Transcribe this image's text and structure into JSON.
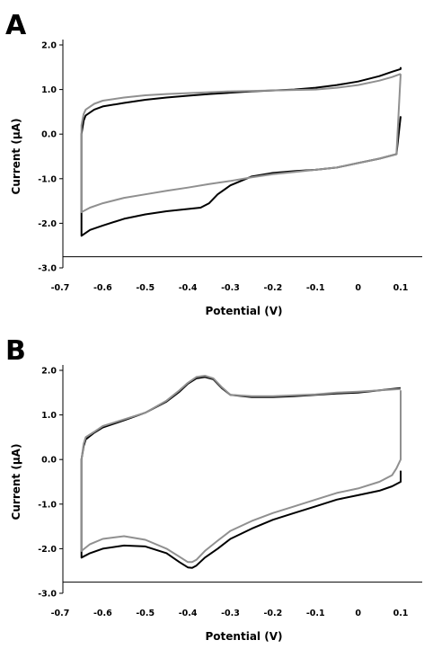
{
  "chart_data": [
    {
      "type": "line",
      "panel_label": "A",
      "xlabel": "Potential (V)",
      "ylabel": "Current (μA)",
      "xlim": [
        -0.7,
        0.12
      ],
      "ylim": [
        -3.0,
        2.1
      ],
      "xticks": [
        -0.7,
        -0.6,
        -0.5,
        -0.4,
        -0.3,
        -0.2,
        -0.1,
        0,
        0.1
      ],
      "xtick_labels": [
        "-0.7",
        "-0.6",
        "-0.5",
        "-0.4",
        "-0.3",
        "-0.2",
        "-0.1",
        "0",
        "0.1"
      ],
      "yticks": [
        2.0,
        1.0,
        0.0,
        -1.0,
        -2.0,
        -3.0
      ],
      "ytick_labels": [
        "2.0",
        "1.0",
        "0.0",
        "-1.0",
        "-2.0",
        "-3.0"
      ],
      "x_axis_at_y": -2.75,
      "grid": false,
      "series": [
        {
          "color": "#000000",
          "x": [
            0.1,
            0.09,
            0.05,
            0.0,
            -0.05,
            -0.1,
            -0.15,
            -0.2,
            -0.25,
            -0.3,
            -0.33,
            -0.35,
            -0.37,
            -0.4,
            -0.45,
            -0.5,
            -0.55,
            -0.6,
            -0.63,
            -0.65,
            -0.65,
            -0.65,
            -0.65,
            -0.645,
            -0.64,
            -0.62,
            -0.6,
            -0.55,
            -0.5,
            -0.45,
            -0.4,
            -0.35,
            -0.3,
            -0.25,
            -0.2,
            -0.15,
            -0.1,
            -0.05,
            0.0,
            0.05,
            0.08,
            0.1,
            0.1
          ],
          "y": [
            0.4,
            -0.45,
            -0.55,
            -0.65,
            -0.75,
            -0.8,
            -0.83,
            -0.87,
            -0.95,
            -1.15,
            -1.35,
            -1.55,
            -1.65,
            -1.68,
            -1.73,
            -1.8,
            -1.9,
            -2.05,
            -2.15,
            -2.28,
            -1.8,
            -1.0,
            0.0,
            0.3,
            0.42,
            0.55,
            0.62,
            0.7,
            0.77,
            0.82,
            0.86,
            0.9,
            0.93,
            0.96,
            0.98,
            1.0,
            1.04,
            1.1,
            1.18,
            1.3,
            1.4,
            1.46,
            1.5
          ]
        },
        {
          "color": "#909090",
          "x": [
            0.1,
            0.09,
            0.05,
            0.0,
            -0.05,
            -0.1,
            -0.15,
            -0.2,
            -0.25,
            -0.3,
            -0.35,
            -0.4,
            -0.45,
            -0.5,
            -0.55,
            -0.6,
            -0.63,
            -0.65,
            -0.65,
            -0.65,
            -0.645,
            -0.64,
            -0.62,
            -0.6,
            -0.55,
            -0.5,
            -0.45,
            -0.4,
            -0.35,
            -0.3,
            -0.25,
            -0.2,
            -0.15,
            -0.1,
            -0.05,
            0.0,
            0.05,
            0.08,
            0.1
          ],
          "y": [
            1.35,
            -0.45,
            -0.55,
            -0.65,
            -0.75,
            -0.8,
            -0.85,
            -0.9,
            -0.97,
            -1.05,
            -1.12,
            -1.2,
            -1.27,
            -1.35,
            -1.43,
            -1.55,
            -1.65,
            -1.75,
            -0.8,
            0.2,
            0.45,
            0.55,
            0.68,
            0.75,
            0.82,
            0.87,
            0.9,
            0.92,
            0.94,
            0.96,
            0.97,
            0.98,
            0.99,
            1.0,
            1.04,
            1.1,
            1.2,
            1.28,
            1.35
          ]
        }
      ]
    },
    {
      "type": "line",
      "panel_label": "B",
      "xlabel": "Potential (V)",
      "ylabel": "Current (μA)",
      "xlim": [
        -0.7,
        0.12
      ],
      "ylim": [
        -3.0,
        2.1
      ],
      "xticks": [
        -0.7,
        -0.6,
        -0.5,
        -0.4,
        -0.3,
        -0.2,
        -0.1,
        0,
        0.1
      ],
      "xtick_labels": [
        "-0.7",
        "-0.6",
        "-0.5",
        "-0.4",
        "-0.3",
        "-0.2",
        "-0.1",
        "0",
        "0.1"
      ],
      "yticks": [
        2.0,
        1.0,
        0.0,
        -1.0,
        -2.0,
        -3.0
      ],
      "ytick_labels": [
        "2.0",
        "1.0",
        "0.0",
        "-1.0",
        "-2.0",
        "-3.0"
      ],
      "x_axis_at_y": -2.75,
      "grid": false,
      "series": [
        {
          "color": "#000000",
          "x": [
            0.1,
            0.1,
            0.08,
            0.05,
            0.0,
            -0.05,
            -0.1,
            -0.15,
            -0.2,
            -0.25,
            -0.3,
            -0.33,
            -0.36,
            -0.38,
            -0.39,
            -0.4,
            -0.42,
            -0.45,
            -0.5,
            -0.55,
            -0.6,
            -0.63,
            -0.65,
            -0.65,
            -0.65,
            -0.645,
            -0.64,
            -0.62,
            -0.6,
            -0.55,
            -0.5,
            -0.45,
            -0.42,
            -0.4,
            -0.38,
            -0.36,
            -0.34,
            -0.32,
            -0.3,
            -0.25,
            -0.2,
            -0.15,
            -0.1,
            -0.05,
            0.0,
            0.05,
            0.1
          ],
          "y": [
            -0.25,
            -0.5,
            -0.6,
            -0.7,
            -0.8,
            -0.9,
            -1.05,
            -1.2,
            -1.35,
            -1.55,
            -1.78,
            -2.0,
            -2.2,
            -2.38,
            -2.43,
            -2.42,
            -2.3,
            -2.1,
            -1.95,
            -1.93,
            -2.0,
            -2.1,
            -2.2,
            -1.0,
            0.0,
            0.3,
            0.45,
            0.6,
            0.72,
            0.88,
            1.05,
            1.3,
            1.52,
            1.7,
            1.82,
            1.85,
            1.8,
            1.6,
            1.45,
            1.4,
            1.4,
            1.42,
            1.45,
            1.48,
            1.5,
            1.55,
            1.6
          ]
        },
        {
          "color": "#909090",
          "x": [
            0.1,
            0.1,
            0.09,
            0.08,
            0.05,
            0.0,
            -0.05,
            -0.1,
            -0.15,
            -0.2,
            -0.25,
            -0.3,
            -0.33,
            -0.36,
            -0.38,
            -0.39,
            -0.4,
            -0.42,
            -0.45,
            -0.5,
            -0.55,
            -0.6,
            -0.63,
            -0.65,
            -0.65,
            -0.645,
            -0.64,
            -0.62,
            -0.6,
            -0.55,
            -0.5,
            -0.45,
            -0.42,
            -0.4,
            -0.38,
            -0.36,
            -0.34,
            -0.32,
            -0.3,
            -0.25,
            -0.2,
            -0.15,
            -0.1,
            -0.05,
            0.0,
            0.05,
            0.1
          ],
          "y": [
            1.55,
            0.0,
            -0.2,
            -0.35,
            -0.5,
            -0.65,
            -0.75,
            -0.9,
            -1.05,
            -1.2,
            -1.38,
            -1.6,
            -1.82,
            -2.05,
            -2.25,
            -2.3,
            -2.3,
            -2.18,
            -2.0,
            -1.8,
            -1.72,
            -1.78,
            -1.9,
            -2.05,
            0.0,
            0.35,
            0.5,
            0.62,
            0.75,
            0.9,
            1.05,
            1.32,
            1.55,
            1.72,
            1.85,
            1.88,
            1.82,
            1.62,
            1.45,
            1.42,
            1.42,
            1.44,
            1.46,
            1.5,
            1.52,
            1.55,
            1.58
          ]
        }
      ]
    }
  ]
}
